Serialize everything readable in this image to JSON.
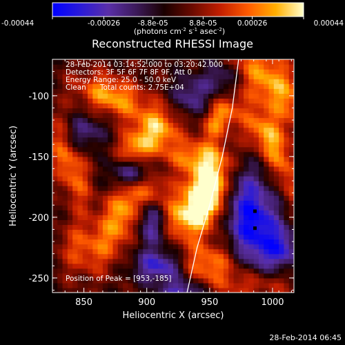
{
  "chart_data": {
    "type": "heatmap",
    "title": "Reconstructed RHESSI Image",
    "xlabel": "Heliocentric X (arcsec)",
    "ylabel": "Heliocentric Y (arcsec)",
    "xlim": [
      825,
      1017
    ],
    "ylim": [
      -262,
      -70
    ],
    "x_ticks": [
      "850",
      "900",
      "950",
      "1000"
    ],
    "x_tick_values": [
      850,
      900,
      950,
      1000
    ],
    "y_ticks": [
      "-100",
      "-150",
      "-200",
      "-250"
    ],
    "y_tick_values": [
      -100,
      -150,
      -200,
      -250
    ],
    "colorbar": {
      "ticks": [
        "-0.00044",
        "-0.00026",
        "-8.8e-05",
        "8.8e-05",
        "0.00026",
        "0.00044"
      ],
      "tick_values": [
        -0.00044,
        -0.00026,
        -8.8e-05,
        8.8e-05,
        0.00026,
        0.00044
      ],
      "range": [
        -0.00044,
        0.00044
      ],
      "unit_label": "(photons cm",
      "unit_exp1": "-2",
      "unit_mid": " s",
      "unit_exp2": "-1",
      "unit_mid2": " asec",
      "unit_exp3": "-2",
      "unit_end": ")",
      "colormap": [
        "#0000ff",
        "#2a1ad8",
        "#5a2fa8",
        "#3c1a5a",
        "#1a0000",
        "#6a0a00",
        "#c21e00",
        "#ff5a00",
        "#ffae00",
        "#ffffcc"
      ]
    },
    "annotations": [
      "28-Feb-2014 03:14:52.000 to 03:20:42.000",
      "Detectors: 3F 5F 6F 7F 8F 9F, Att 0",
      "Energy Range: 25.0 - 50.0 keV",
      "Clean      Total counts: 2.75E+04"
    ],
    "peak_label": "Position of Peak = [953,-185]",
    "peak": [
      953,
      -185
    ],
    "blobs": [
      {
        "x": 952,
        "y": -180,
        "a": 9,
        "b": 20,
        "angle": -15,
        "v": 0.00044
      },
      {
        "x": 940,
        "y": -180,
        "a": 10,
        "b": 22,
        "angle": -10,
        "v": 0.00034
      },
      {
        "x": 880,
        "y": -195,
        "a": 9,
        "b": 25,
        "angle": -15,
        "v": 0.00034
      },
      {
        "x": 908,
        "y": -128,
        "a": 13,
        "b": 13,
        "angle": 0,
        "v": 0.00036
      },
      {
        "x": 958,
        "y": -118,
        "a": 8,
        "b": 14,
        "angle": -30,
        "v": 0.0003
      },
      {
        "x": 1000,
        "y": -90,
        "a": 14,
        "b": 32,
        "angle": 40,
        "v": 0.00034
      },
      {
        "x": 992,
        "y": -130,
        "a": 10,
        "b": 18,
        "angle": 40,
        "v": 0.00026
      },
      {
        "x": 872,
        "y": -100,
        "a": 20,
        "b": 11,
        "angle": -20,
        "v": 0.00034
      },
      {
        "x": 890,
        "y": -145,
        "a": 9,
        "b": 10,
        "angle": 0,
        "v": 0.00028
      },
      {
        "x": 838,
        "y": -155,
        "a": 9,
        "b": 28,
        "angle": 20,
        "v": 0.00028
      },
      {
        "x": 948,
        "y": -238,
        "a": 16,
        "b": 12,
        "angle": 0,
        "v": 0.00028
      },
      {
        "x": 938,
        "y": -150,
        "a": 20,
        "b": 9,
        "angle": 0,
        "v": 0.00022
      },
      {
        "x": 1008,
        "y": -160,
        "a": 7,
        "b": 22,
        "angle": 20,
        "v": 0.00022
      },
      {
        "x": 905,
        "y": -178,
        "a": 10,
        "b": 10,
        "angle": 0,
        "v": 0.00022
      },
      {
        "x": 925,
        "y": -200,
        "a": 10,
        "b": 12,
        "angle": 0,
        "v": 0.00024
      },
      {
        "x": 850,
        "y": -225,
        "a": 14,
        "b": 16,
        "angle": 0,
        "v": 0.00022
      },
      {
        "x": 988,
        "y": -255,
        "a": 22,
        "b": 10,
        "angle": 0,
        "v": 0.00022
      },
      {
        "x": 985,
        "y": -205,
        "a": 14,
        "b": 30,
        "angle": 10,
        "v": -0.00044
      },
      {
        "x": 888,
        "y": -162,
        "a": 12,
        "b": 9,
        "angle": 30,
        "v": -0.00036
      },
      {
        "x": 910,
        "y": -240,
        "a": 14,
        "b": 9,
        "angle": 0,
        "v": -0.00032
      },
      {
        "x": 905,
        "y": -205,
        "a": 8,
        "b": 14,
        "angle": 0,
        "v": -0.00024
      },
      {
        "x": 850,
        "y": -130,
        "a": 12,
        "b": 10,
        "angle": 30,
        "v": -0.0002
      },
      {
        "x": 960,
        "y": -85,
        "a": 10,
        "b": 10,
        "angle": 0,
        "v": -0.0002
      },
      {
        "x": 935,
        "y": -100,
        "a": 10,
        "b": 12,
        "angle": 0,
        "v": -0.00022
      },
      {
        "x": 928,
        "y": -262,
        "a": 12,
        "b": 8,
        "angle": 0,
        "v": -0.0003
      },
      {
        "x": 1008,
        "y": -225,
        "a": 8,
        "b": 12,
        "angle": 0,
        "v": -0.00024
      }
    ],
    "limb_points": [
      [
        973,
        -70
      ],
      [
        968,
        -110
      ],
      [
        960,
        -150
      ],
      [
        950,
        -190
      ],
      [
        940,
        -225
      ],
      [
        932,
        -262
      ]
    ],
    "dots": [
      [
        986,
        -195
      ],
      [
        986,
        -209
      ]
    ]
  },
  "footer_timestamp": "28-Feb-2014 06:45"
}
